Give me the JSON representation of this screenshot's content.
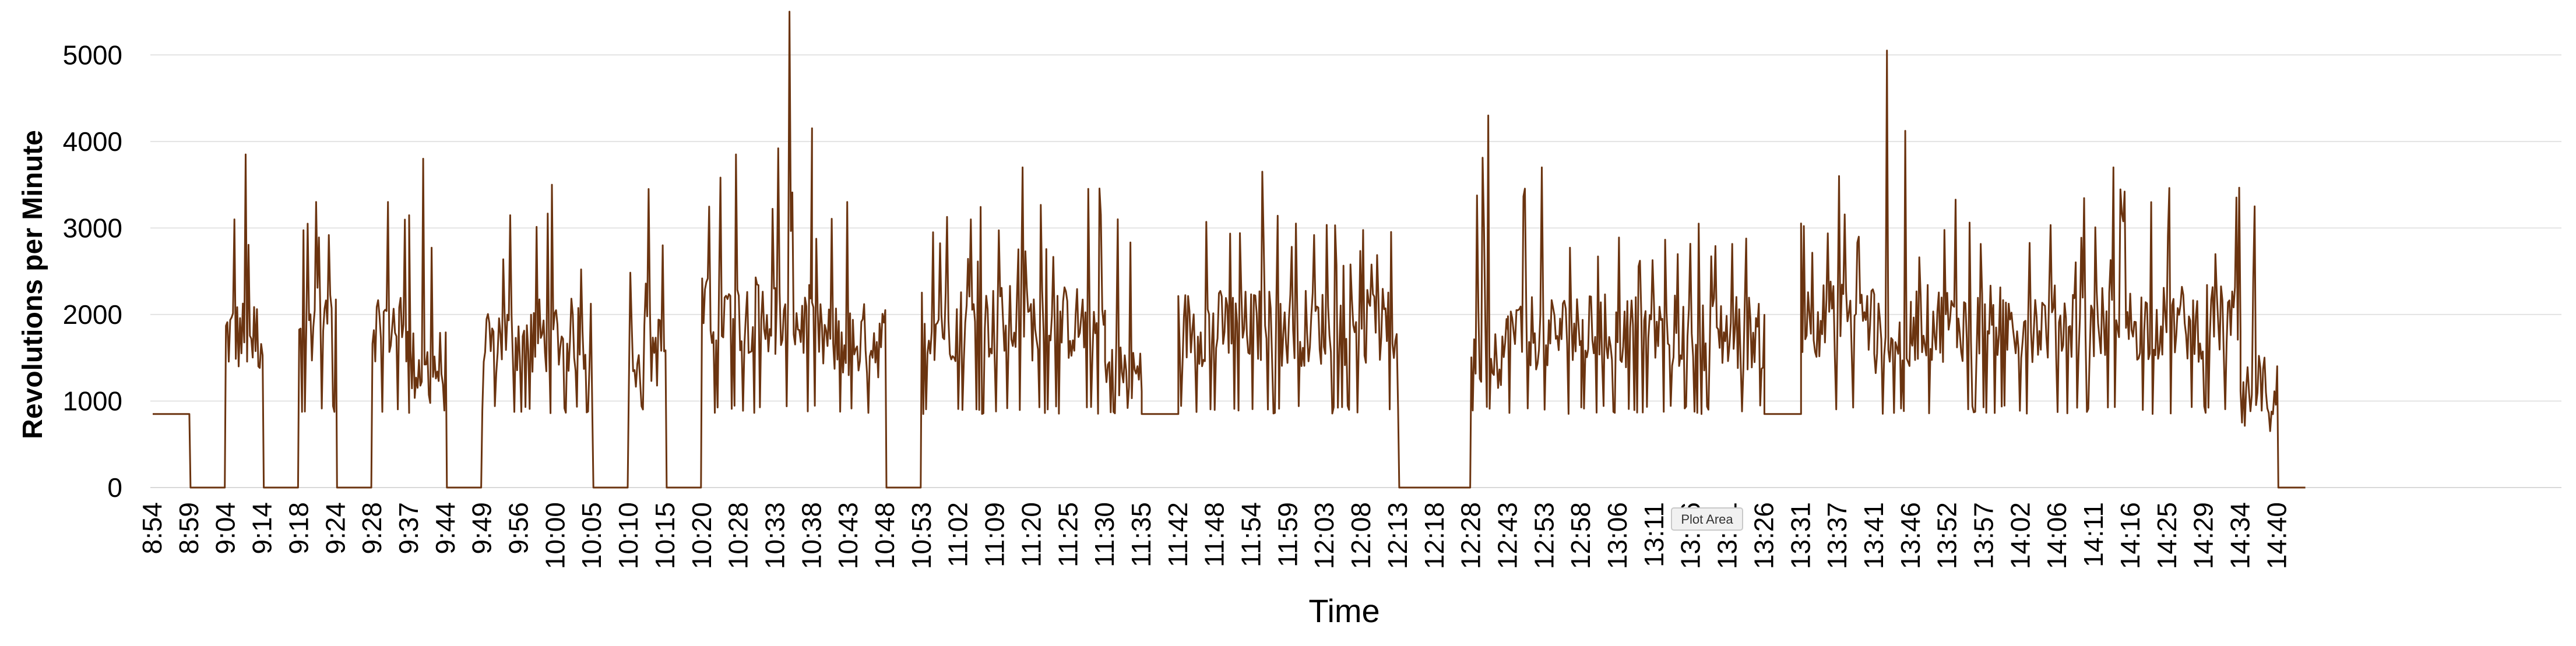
{
  "chart_data": {
    "type": "line",
    "title": "",
    "xlabel": "Time",
    "ylabel": "Revolutions per Minute",
    "ylim": [
      0,
      5500
    ],
    "y_ticks": [
      "0",
      "1000",
      "2000",
      "3000",
      "4000",
      "5000"
    ],
    "grid": "horizontal",
    "legend": "none",
    "line_color": "#6b3410",
    "x_ticks": [
      "8:54",
      "8:59",
      "9:04",
      "9:14",
      "9:18",
      "9:24",
      "9:28",
      "9:37",
      "9:44",
      "9:49",
      "9:56",
      "10:00",
      "10:05",
      "10:10",
      "10:15",
      "10:20",
      "10:28",
      "10:33",
      "10:38",
      "10:43",
      "10:48",
      "10:53",
      "11:02",
      "11:09",
      "11:20",
      "11:25",
      "11:30",
      "11:35",
      "11:42",
      "11:48",
      "11:54",
      "11:59",
      "12:03",
      "12:08",
      "12:13",
      "12:18",
      "12:28",
      "12:43",
      "12:53",
      "12:58",
      "13:06",
      "13:11",
      "13:16",
      "13:21",
      "13:26",
      "13:31",
      "13:37",
      "13:41",
      "13:46",
      "13:52",
      "13:57",
      "14:02",
      "14:06",
      "14:11",
      "14:16",
      "14:25",
      "14:29",
      "14:34",
      "14:40"
    ],
    "segments": [
      {
        "start": "8:54",
        "end": "8:59",
        "pattern": "constant",
        "value": 850
      },
      {
        "start": "8:59",
        "end": "9:04",
        "pattern": "zero"
      },
      {
        "start": "9:04",
        "end": "9:14",
        "pattern": "active",
        "mean": 1750,
        "peak": 3850
      },
      {
        "start": "9:14",
        "end": "9:18",
        "pattern": "zero"
      },
      {
        "start": "9:18",
        "end": "9:24",
        "pattern": "active",
        "mean": 1900,
        "peak": 3300
      },
      {
        "start": "9:24",
        "end": "9:28",
        "pattern": "zero"
      },
      {
        "start": "9:28",
        "end": "9:37",
        "pattern": "active",
        "mean": 1900,
        "peak": 3300
      },
      {
        "start": "9:37",
        "end": "9:44",
        "pattern": "active",
        "mean": 1400,
        "peak": 3800
      },
      {
        "start": "9:44",
        "end": "9:49",
        "pattern": "zero"
      },
      {
        "start": "9:49",
        "end": "10:05",
        "pattern": "active",
        "mean": 1750,
        "peak": 3500
      },
      {
        "start": "10:05",
        "end": "10:10",
        "pattern": "zero"
      },
      {
        "start": "10:10",
        "end": "10:15",
        "pattern": "active",
        "mean": 1600,
        "peak": 3450
      },
      {
        "start": "10:15",
        "end": "10:20",
        "pattern": "zero"
      },
      {
        "start": "10:20",
        "end": "10:33",
        "pattern": "active",
        "mean": 2000,
        "peak": 3850
      },
      {
        "start": "10:33",
        "end": "10:38",
        "pattern": "active",
        "mean": 1900,
        "peak": 5500
      },
      {
        "start": "10:38",
        "end": "10:48",
        "pattern": "active",
        "mean": 1700,
        "peak": 3300
      },
      {
        "start": "10:48",
        "end": "10:53",
        "pattern": "zero"
      },
      {
        "start": "10:53",
        "end": "11:30",
        "pattern": "active",
        "mean": 1900,
        "peak": 3700
      },
      {
        "start": "11:30",
        "end": "11:35",
        "pattern": "active",
        "mean": 1300,
        "peak": 3100
      },
      {
        "start": "11:35",
        "end": "11:42",
        "pattern": "constant",
        "value": 850
      },
      {
        "start": "11:42",
        "end": "12:13",
        "pattern": "active",
        "mean": 1850,
        "peak": 3650
      },
      {
        "start": "12:13",
        "end": "12:28",
        "pattern": "zero"
      },
      {
        "start": "12:28",
        "end": "12:43",
        "pattern": "active",
        "mean": 1600,
        "peak": 4300
      },
      {
        "start": "12:43",
        "end": "12:58",
        "pattern": "active",
        "mean": 1800,
        "peak": 3700
      },
      {
        "start": "12:58",
        "end": "13:26",
        "pattern": "active",
        "mean": 1800,
        "peak": 3050
      },
      {
        "start": "13:26",
        "end": "13:31",
        "pattern": "constant",
        "value": 850
      },
      {
        "start": "13:31",
        "end": "13:41",
        "pattern": "active",
        "mean": 1950,
        "peak": 3600
      },
      {
        "start": "13:41",
        "end": "13:46",
        "pattern": "active",
        "mean": 1700,
        "peak": 5050
      },
      {
        "start": "13:46",
        "end": "14:34",
        "pattern": "active",
        "mean": 1900,
        "peak": 3700
      },
      {
        "start": "14:34",
        "end": "14:40",
        "pattern": "active",
        "mean": 1100,
        "peak": 3250
      },
      {
        "start": "14:40",
        "end": "14:44",
        "pattern": "zero"
      }
    ],
    "tooltip": "Plot Area"
  }
}
